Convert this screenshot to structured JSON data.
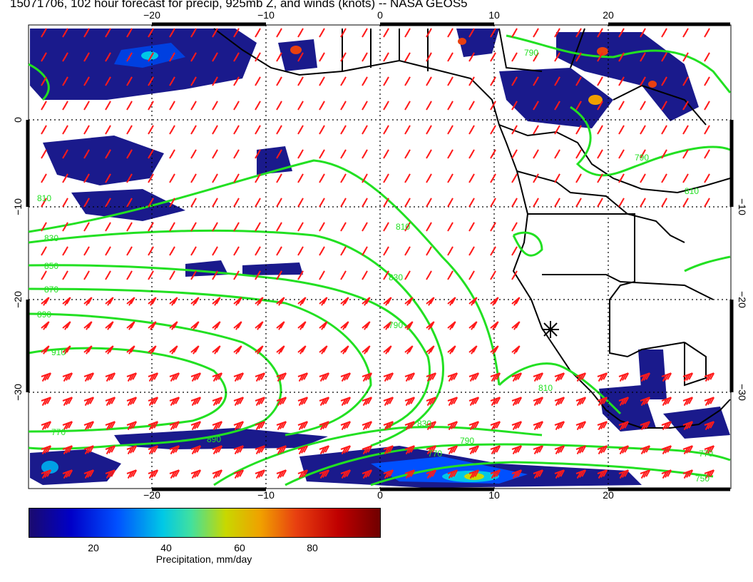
{
  "title": "15071706, 102 hour forecast for precip, 925mb Z, and winds (knots) -- NASA GEOS5",
  "map": {
    "lon_labels": [
      "−20",
      "−10",
      "0",
      "10",
      "20"
    ],
    "lat_labels_left": [
      "0",
      "−10",
      "−20",
      "−30"
    ],
    "lat_labels_right": [
      "−10",
      "−20",
      "−30"
    ],
    "contour_labels": [
      "810",
      "830",
      "850",
      "870",
      "890",
      "910",
      "830",
      "810",
      "790",
      "770",
      "890",
      "830",
      "770",
      "790",
      "810",
      "770",
      "790",
      "810",
      "790",
      "750"
    ],
    "contour_color": "#22e022",
    "wind_barb_color": "#ff1a1a",
    "marker": "asterisk-station"
  },
  "colorbar": {
    "ticks": [
      "20",
      "40",
      "60",
      "80"
    ],
    "title": "Precipitation, mm/day",
    "colors": [
      "#1a0a6e",
      "#0000c8",
      "#0050ff",
      "#00c8e6",
      "#c8d800",
      "#f0a000",
      "#e84010",
      "#c00000",
      "#700000"
    ]
  }
}
